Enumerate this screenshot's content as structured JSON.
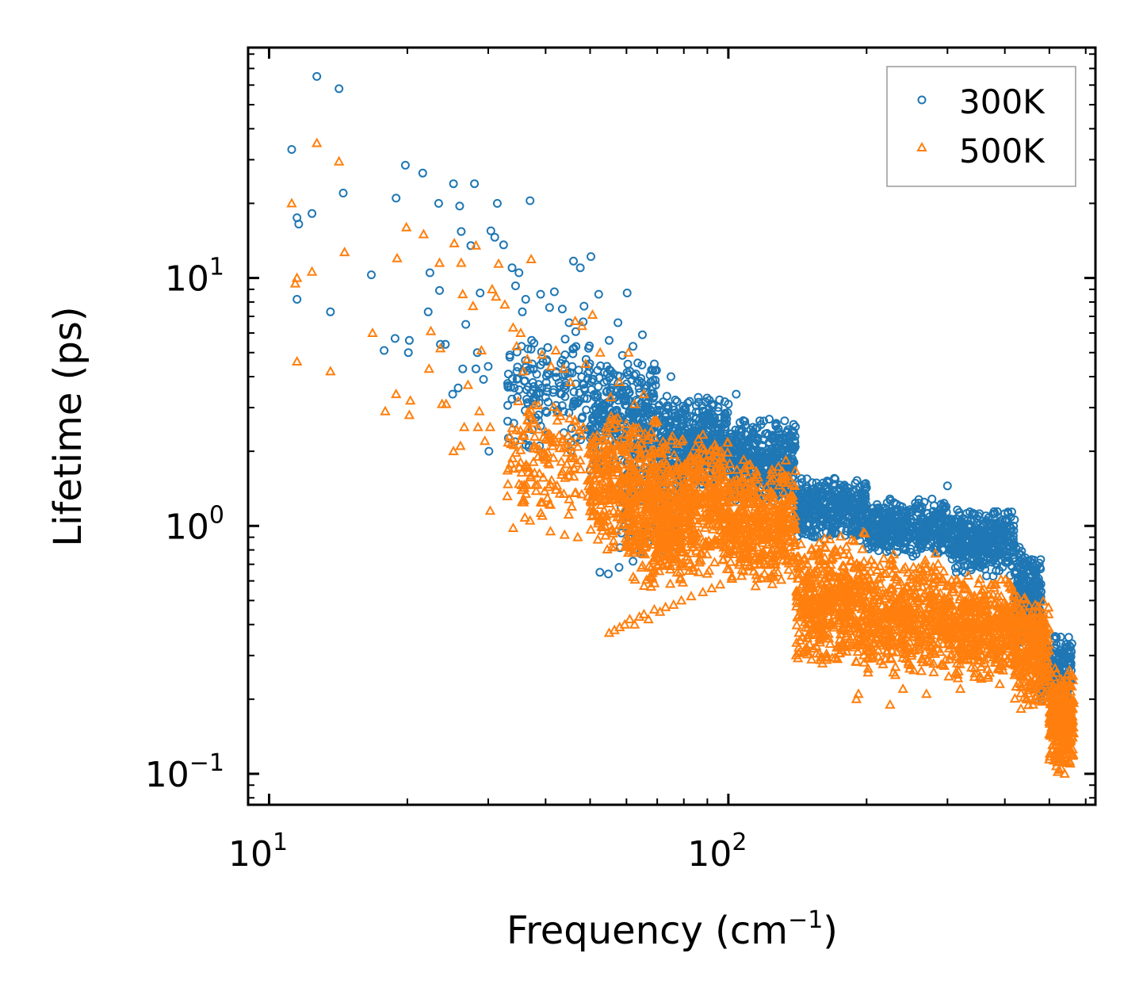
{
  "chart_data": {
    "type": "scatter",
    "title": "",
    "xlabel": "Frequency (cm",
    "xlabel_sup": "−1",
    "xlabel_end": ")",
    "ylabel": "Lifetime (ps)",
    "xscale": "log",
    "yscale": "log",
    "xlim": [
      9.0,
      630.0
    ],
    "ylim": [
      0.075,
      85.0
    ],
    "x_ticks": [
      {
        "value": 10,
        "base": "10",
        "exp": "1"
      },
      {
        "value": 100,
        "base": "10",
        "exp": "2"
      }
    ],
    "y_ticks": [
      {
        "value": 0.1,
        "base": "10",
        "exp": "−1"
      },
      {
        "value": 1,
        "base": "10",
        "exp": "0"
      },
      {
        "value": 10,
        "base": "10",
        "exp": "1"
      }
    ],
    "legend_position": "top-right",
    "series": [
      {
        "name": "300K",
        "color": "#1f77b4",
        "marker": "circle",
        "points": [
          [
            11.2,
            33
          ],
          [
            11.5,
            17.5
          ],
          [
            11.6,
            16.5
          ],
          [
            11.5,
            8.2
          ],
          [
            12.4,
            18.2
          ],
          [
            12.7,
            65
          ],
          [
            13.6,
            7.3
          ],
          [
            14.2,
            58
          ],
          [
            14.5,
            22
          ],
          [
            16.7,
            10.3
          ],
          [
            17.8,
            5.1
          ],
          [
            18.8,
            5.7
          ],
          [
            18.9,
            21
          ],
          [
            19.8,
            28.5
          ],
          [
            20.2,
            5.6
          ],
          [
            20.1,
            5.0
          ],
          [
            21.6,
            26.5
          ],
          [
            22.2,
            7.3
          ],
          [
            22.4,
            10.5
          ],
          [
            23.4,
            20
          ],
          [
            23.5,
            8.9
          ],
          [
            23.6,
            5.4
          ],
          [
            24.2,
            5.4
          ],
          [
            25.2,
            24
          ],
          [
            25.1,
            3.4
          ],
          [
            25.8,
            3.6
          ],
          [
            26.2,
            15.4
          ],
          [
            26.0,
            19.5
          ],
          [
            26.4,
            4.3
          ],
          [
            26.8,
            6.5
          ],
          [
            27.5,
            13.5
          ],
          [
            28.0,
            24
          ],
          [
            28.2,
            4.3
          ],
          [
            28.4,
            5.0
          ],
          [
            28.8,
            8.7
          ],
          [
            29.3,
            3.9
          ],
          [
            30.0,
            4.4
          ],
          [
            30.1,
            2.0
          ],
          [
            30.4,
            15.5
          ],
          [
            31.0,
            14.6
          ],
          [
            31.4,
            20
          ],
          [
            32.4,
            13.6
          ],
          [
            33.2,
            4.1
          ],
          [
            33.8,
            11
          ],
          [
            34.4,
            9.3
          ],
          [
            35.0,
            10.5
          ],
          [
            35.6,
            7.3
          ],
          [
            36.2,
            8.2
          ],
          [
            37.0,
            20.5
          ],
          [
            37.4,
            4.5
          ],
          [
            38.2,
            3.4
          ],
          [
            39.0,
            8.6
          ],
          [
            40.0,
            3.3
          ],
          [
            40.8,
            7.6
          ],
          [
            41.8,
            8.8
          ],
          [
            43.5,
            7.5
          ],
          [
            45.0,
            6.6
          ],
          [
            46.0,
            11.7
          ],
          [
            47.6,
            11.0
          ],
          [
            48.5,
            7.7
          ],
          [
            50.2,
            12.2
          ],
          [
            52.2,
            8.6
          ],
          [
            55.0,
            5.6
          ],
          [
            57.5,
            6.6
          ],
          [
            60.2,
            8.7
          ],
          [
            62.0,
            5.3
          ],
          [
            65.0,
            5.9
          ],
          [
            69.0,
            4.5
          ],
          [
            75.0,
            4.0
          ],
          [
            80.5,
            3.0
          ],
          [
            86.0,
            3.3
          ],
          [
            95.0,
            2.9
          ],
          [
            100.0,
            3.1
          ],
          [
            104.0,
            3.4
          ],
          [
            52.5,
            0.65
          ],
          [
            54.8,
            0.64
          ],
          [
            57.8,
            0.68
          ],
          [
            62.0,
            0.72
          ],
          [
            300.0,
            1.45
          ],
          [
            310.0,
            1.05
          ],
          [
            357.0,
            0.88
          ],
          [
            390.0,
            0.95
          ],
          [
            430.0,
            0.82
          ],
          [
            462.0,
            0.6
          ],
          [
            474.0,
            0.51
          ]
        ],
        "bands": [
          {
            "x": [
              33,
              50
            ],
            "y": [
              1.8,
              7.0
            ],
            "n": 160
          },
          {
            "x": [
              50,
              70
            ],
            "y": [
              1.6,
              5.0
            ],
            "n": 300
          },
          {
            "x": [
              58,
              80
            ],
            "y": [
              0.72,
              2.6
            ],
            "n": 160
          },
          {
            "x": [
              70,
              100
            ],
            "y": [
              1.4,
              3.4
            ],
            "n": 450
          },
          {
            "x": [
              100,
              140
            ],
            "y": [
              1.2,
              2.8
            ],
            "n": 450
          },
          {
            "x": [
              140,
              200
            ],
            "y": [
              0.85,
              1.6
            ],
            "n": 420
          },
          {
            "x": [
              200,
              300
            ],
            "y": [
              0.75,
              1.3
            ],
            "n": 420
          },
          {
            "x": [
              300,
              420
            ],
            "y": [
              0.62,
              1.2
            ],
            "n": 380
          },
          {
            "x": [
              420,
              480
            ],
            "y": [
              0.32,
              0.82
            ],
            "n": 260
          },
          {
            "x": [
              480,
              560
            ],
            "y": [
              0.18,
              0.38
            ],
            "n": 220
          }
        ]
      },
      {
        "name": "500K",
        "color": "#ff7f0e",
        "marker": "triangle",
        "points": [
          [
            11.2,
            20
          ],
          [
            11.5,
            10
          ],
          [
            11.4,
            9.5
          ],
          [
            11.5,
            4.6
          ],
          [
            12.4,
            10.6
          ],
          [
            12.7,
            35
          ],
          [
            13.6,
            4.2
          ],
          [
            14.2,
            29.5
          ],
          [
            14.6,
            12.7
          ],
          [
            16.8,
            6.0
          ],
          [
            17.9,
            2.9
          ],
          [
            18.9,
            3.4
          ],
          [
            19.0,
            12
          ],
          [
            19.9,
            16
          ],
          [
            20.3,
            3.2
          ],
          [
            20.2,
            2.8
          ],
          [
            21.7,
            15
          ],
          [
            22.3,
            4.3
          ],
          [
            22.5,
            6.1
          ],
          [
            23.5,
            11.5
          ],
          [
            23.6,
            5.2
          ],
          [
            23.8,
            3.1
          ],
          [
            24.3,
            3.1
          ],
          [
            25.3,
            13.8
          ],
          [
            25.2,
            2.0
          ],
          [
            26.1,
            2.1
          ],
          [
            26.4,
            8.6
          ],
          [
            26.2,
            11.5
          ],
          [
            26.6,
            2.5
          ],
          [
            27.1,
            3.7
          ],
          [
            27.8,
            7.7
          ],
          [
            28.2,
            13.5
          ],
          [
            28.5,
            2.5
          ],
          [
            28.7,
            2.9
          ],
          [
            29.0,
            5.1
          ],
          [
            29.5,
            2.2
          ],
          [
            30.3,
            2.5
          ],
          [
            30.3,
            1.15
          ],
          [
            30.6,
            9.0
          ],
          [
            31.2,
            8.4
          ],
          [
            31.6,
            11.4
          ],
          [
            32.6,
            7.8
          ],
          [
            33.4,
            2.3
          ],
          [
            34.0,
            6.3
          ],
          [
            34.6,
            5.3
          ],
          [
            35.3,
            6.0
          ],
          [
            35.8,
            4.2
          ],
          [
            36.5,
            4.7
          ],
          [
            37.2,
            11.9
          ],
          [
            37.7,
            2.6
          ],
          [
            38.5,
            1.9
          ],
          [
            39.3,
            4.9
          ],
          [
            40.3,
            1.9
          ],
          [
            41.1,
            4.4
          ],
          [
            42.1,
            5.1
          ],
          [
            43.8,
            4.3
          ],
          [
            45.3,
            3.8
          ],
          [
            46.4,
            6.7
          ],
          [
            48.0,
            6.4
          ],
          [
            48.9,
            4.5
          ],
          [
            50.6,
            7.1
          ],
          [
            52.6,
            5.0
          ],
          [
            55.4,
            3.3
          ],
          [
            57.9,
            3.8
          ],
          [
            60.6,
            5.0
          ],
          [
            62.5,
            3.1
          ],
          [
            65.5,
            3.4
          ],
          [
            69.5,
            2.6
          ],
          [
            75.5,
            2.3
          ],
          [
            34.0,
            0.98
          ],
          [
            37.0,
            1.05
          ],
          [
            41.0,
            0.95
          ],
          [
            44.0,
            0.92
          ],
          [
            47.0,
            0.9
          ],
          [
            52.0,
            0.88
          ],
          [
            55.0,
            0.37
          ],
          [
            56.5,
            0.38
          ],
          [
            58.0,
            0.39
          ],
          [
            59.5,
            0.4
          ],
          [
            61.0,
            0.42
          ],
          [
            62.5,
            0.4
          ],
          [
            64.0,
            0.43
          ],
          [
            65.5,
            0.44
          ],
          [
            67.0,
            0.42
          ],
          [
            69.0,
            0.46
          ],
          [
            71.0,
            0.45
          ],
          [
            73.0,
            0.47
          ],
          [
            76.0,
            0.48
          ],
          [
            79.0,
            0.5
          ],
          [
            83.0,
            0.52
          ],
          [
            88.0,
            0.54
          ],
          [
            92.0,
            0.56
          ],
          [
            96.0,
            0.58
          ],
          [
            190.0,
            0.2
          ],
          [
            192.0,
            0.21
          ],
          [
            225.0,
            0.19
          ],
          [
            240.0,
            0.22
          ],
          [
            270.0,
            0.21
          ],
          [
            320.0,
            0.22
          ],
          [
            390.0,
            0.23
          ],
          [
            420.0,
            0.25
          ],
          [
            540.0,
            0.1
          ],
          [
            555.0,
            0.11
          ]
        ],
        "bands": [
          {
            "x": [
              33,
              52
            ],
            "y": [
              0.95,
              3.5
            ],
            "n": 160
          },
          {
            "x": [
              50,
              70
            ],
            "y": [
              0.75,
              3.0
            ],
            "n": 380
          },
          {
            "x": [
              60,
              80
            ],
            "y": [
              0.55,
              1.6
            ],
            "n": 220
          },
          {
            "x": [
              70,
              100
            ],
            "y": [
              0.62,
              2.4
            ],
            "n": 500
          },
          {
            "x": [
              100,
              140
            ],
            "y": [
              0.55,
              1.9
            ],
            "n": 480
          },
          {
            "x": [
              140,
              200
            ],
            "y": [
              0.26,
              0.95
            ],
            "n": 520
          },
          {
            "x": [
              200,
              300
            ],
            "y": [
              0.24,
              0.78
            ],
            "n": 520
          },
          {
            "x": [
              300,
              420
            ],
            "y": [
              0.23,
              0.65
            ],
            "n": 460
          },
          {
            "x": [
              420,
              500
            ],
            "y": [
              0.18,
              0.55
            ],
            "n": 300
          },
          {
            "x": [
              500,
              565
            ],
            "y": [
              0.1,
              0.28
            ],
            "n": 300
          }
        ]
      }
    ]
  }
}
